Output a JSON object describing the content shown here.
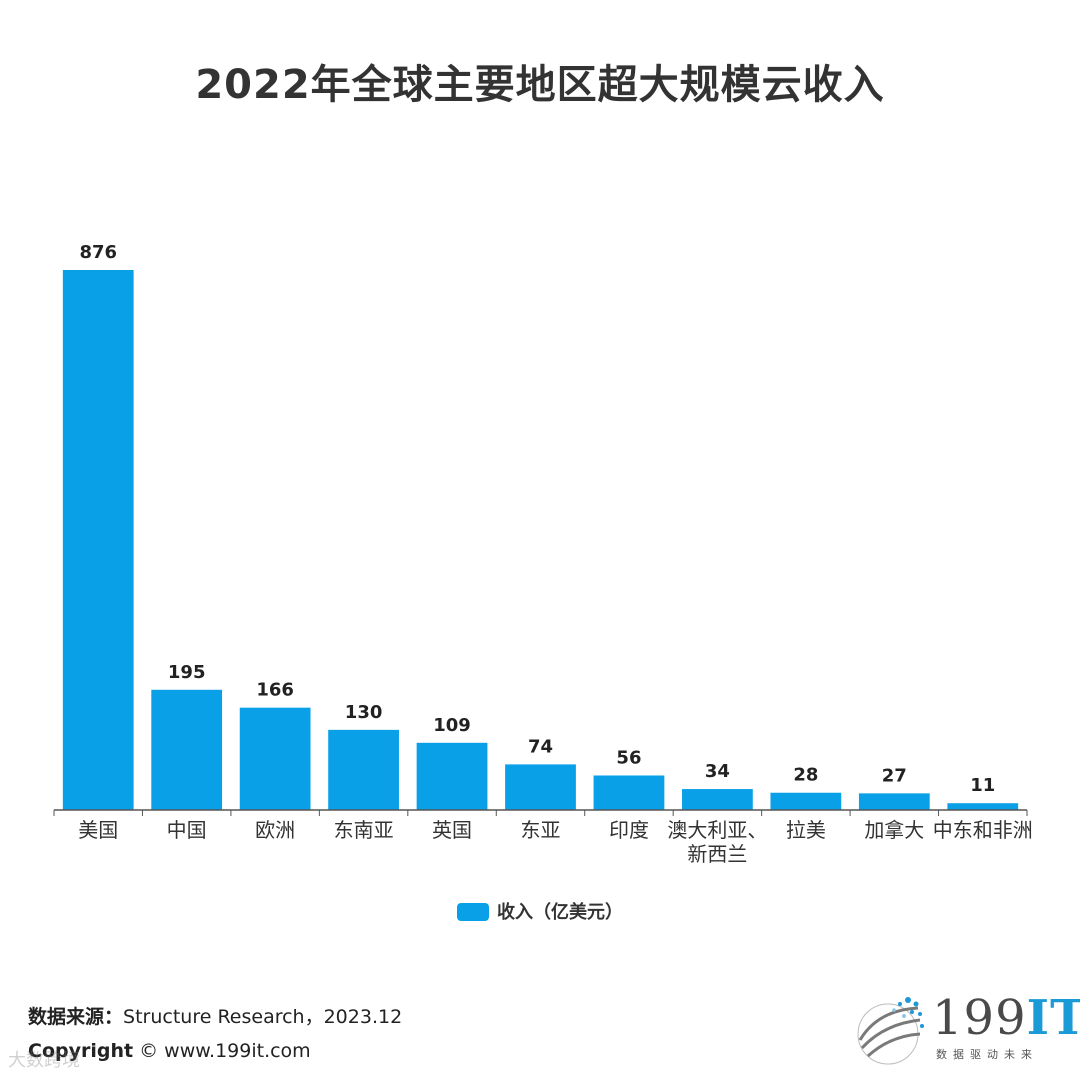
{
  "title": "2022年全球主要地区超大规模云收入",
  "legend": {
    "label": "收入（亿美元）",
    "color": "#0aa0e8"
  },
  "chart_data": {
    "type": "bar",
    "title": "2022年全球主要地区超大规模云收入",
    "categories": [
      "美国",
      "中国",
      "欧洲",
      "东南亚",
      "英国",
      "东亚",
      "印度",
      "澳大利亚、新西兰",
      "拉美",
      "加拿大",
      "中东和非洲"
    ],
    "category_lines": [
      [
        "美国"
      ],
      [
        "中国"
      ],
      [
        "欧洲"
      ],
      [
        "东南亚"
      ],
      [
        "英国"
      ],
      [
        "东亚"
      ],
      [
        "印度"
      ],
      [
        "澳大利亚、",
        "新西兰"
      ],
      [
        "拉美"
      ],
      [
        "加拿大"
      ],
      [
        "中东和非洲"
      ]
    ],
    "series": [
      {
        "name": "收入（亿美元）",
        "values": [
          876,
          195,
          166,
          130,
          109,
          74,
          56,
          34,
          28,
          27,
          11
        ],
        "color": "#0aa0e8"
      }
    ],
    "ylim": [
      0,
      876
    ],
    "xlabel": "",
    "ylabel": "",
    "grid": false,
    "data_labels": true,
    "legend_position": "bottom"
  },
  "footer": {
    "source_label": "数据来源：",
    "source_text": "Structure Research，2023.12",
    "copyright_label": "Copyright",
    "copyright_text": " © www.199it.com"
  },
  "logo": {
    "brand_num": "199",
    "brand_it": "IT",
    "slogan": "数据驱动未来"
  },
  "watermark": "大数跨境"
}
